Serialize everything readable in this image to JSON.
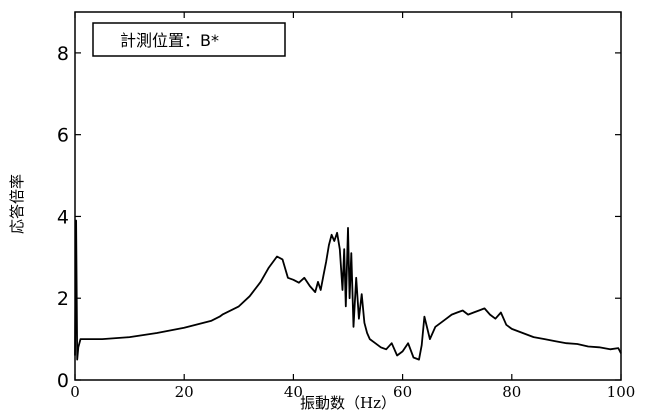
{
  "chart_data": {
    "type": "line",
    "title": "",
    "legend_label": "計測位置：B*",
    "xlabel": "振動数（Hz）",
    "ylabel": "応答倍率",
    "xlim": [
      0,
      100
    ],
    "ylim": [
      0,
      9
    ],
    "xticks": [
      0,
      20,
      40,
      60,
      80,
      100
    ],
    "yticks": [
      0,
      2,
      4,
      6,
      8
    ],
    "grid": false,
    "legend_position": "top-left",
    "series": [
      {
        "color": "#000000",
        "x": [
          0,
          0.2,
          0.4,
          0.6,
          1,
          2,
          5,
          10,
          15,
          20,
          25,
          26.5,
          27,
          30,
          32,
          34,
          35.5,
          37,
          38,
          39,
          40,
          41,
          42,
          43,
          44,
          44.5,
          45,
          45.5,
          46,
          46.5,
          47,
          47.5,
          48,
          48.5,
          49,
          49.3,
          49.6,
          50,
          50.3,
          50.6,
          51,
          51.5,
          52,
          52.5,
          53,
          53.5,
          54,
          55,
          56,
          57,
          58,
          59,
          60,
          61,
          62,
          63,
          63.5,
          64,
          65,
          66,
          67,
          68,
          69,
          70,
          71,
          72,
          73,
          74,
          75,
          76,
          77,
          78,
          79,
          80,
          82,
          84,
          86,
          88,
          90,
          92,
          94,
          96,
          98,
          99.5,
          100
        ],
        "values": [
          0.6,
          3.9,
          0.5,
          0.8,
          1.0,
          1.0,
          1.0,
          1.05,
          1.15,
          1.28,
          1.45,
          1.55,
          1.6,
          1.8,
          2.05,
          2.4,
          2.75,
          3.02,
          2.95,
          2.5,
          2.45,
          2.38,
          2.5,
          2.3,
          2.15,
          2.4,
          2.2,
          2.55,
          2.9,
          3.3,
          3.55,
          3.4,
          3.6,
          3.2,
          2.2,
          3.2,
          1.8,
          3.72,
          2.0,
          3.1,
          1.3,
          2.5,
          1.5,
          2.1,
          1.4,
          1.15,
          1.0,
          0.9,
          0.8,
          0.75,
          0.9,
          0.6,
          0.7,
          0.9,
          0.55,
          0.5,
          0.85,
          1.55,
          1.0,
          1.3,
          1.4,
          1.5,
          1.6,
          1.65,
          1.7,
          1.6,
          1.65,
          1.7,
          1.75,
          1.6,
          1.5,
          1.65,
          1.35,
          1.25,
          1.15,
          1.05,
          1.0,
          0.95,
          0.9,
          0.88,
          0.82,
          0.8,
          0.75,
          0.78,
          0.65
        ]
      }
    ]
  }
}
